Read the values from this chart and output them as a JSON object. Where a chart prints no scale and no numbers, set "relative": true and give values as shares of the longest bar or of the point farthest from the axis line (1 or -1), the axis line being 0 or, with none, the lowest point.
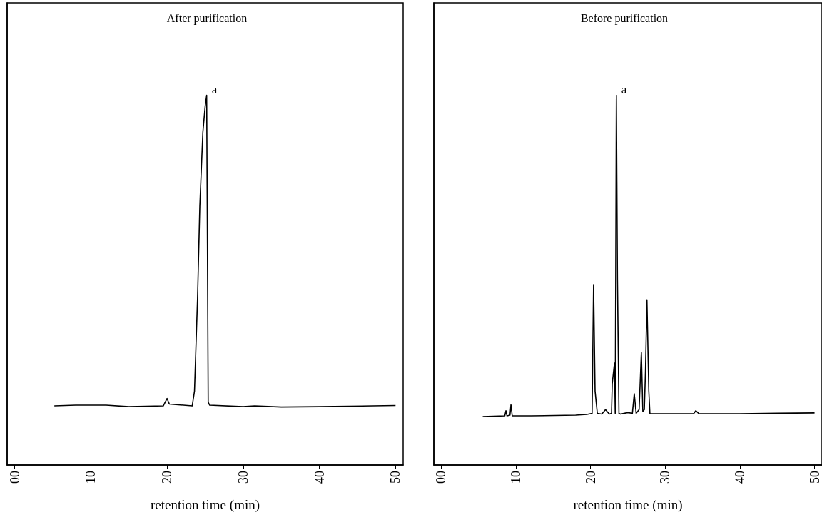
{
  "chart_data": [
    {
      "type": "line",
      "title": "After purification",
      "xlabel": "retention time (min)",
      "relative": true,
      "xlim": [
        -1,
        51
      ],
      "xticks": [
        {
          "value": 0,
          "label": "00"
        },
        10,
        20,
        30,
        40,
        50
      ],
      "tick_labels": "x",
      "grid": false,
      "marker": "none",
      "line_style": "solid",
      "annotations": [
        {
          "text": "a",
          "x": 25.2,
          "y": 1.0
        }
      ],
      "series": [
        {
          "color": "#000000",
          "x": [
            5.2,
            8,
            12,
            15,
            19.5,
            20.0,
            20.3,
            23.3,
            23.6,
            24.0,
            24.3,
            24.7,
            25.0,
            25.2,
            25.3,
            25.4,
            25.6,
            30,
            31.5,
            35,
            40,
            47,
            50
          ],
          "values": [
            0.16,
            0.162,
            0.162,
            0.158,
            0.16,
            0.18,
            0.165,
            0.16,
            0.2,
            0.45,
            0.7,
            0.9,
            0.97,
            1.0,
            0.6,
            0.17,
            0.162,
            0.158,
            0.16,
            0.157,
            0.158,
            0.16,
            0.161
          ]
        }
      ]
    },
    {
      "type": "line",
      "title": "Before purification",
      "xlabel": "retention time (min)",
      "relative": true,
      "xlim": [
        -1,
        51
      ],
      "xticks": [
        {
          "value": 0,
          "label": "00"
        },
        10,
        20,
        30,
        40,
        50
      ],
      "tick_labels": "x",
      "grid": false,
      "marker": "none",
      "line_style": "solid",
      "annotations": [
        {
          "text": "a",
          "x": 23.45,
          "y": 1.0
        }
      ],
      "series": [
        {
          "color": "#000000",
          "x": [
            5.55,
            8.5,
            8.66,
            8.8,
            9.2,
            9.33,
            9.5,
            12,
            18,
            19.5,
            20.2,
            20.4,
            20.6,
            20.9,
            21.5,
            22.0,
            22.5,
            22.8,
            22.9,
            23.2,
            23.3,
            23.45,
            23.6,
            23.8,
            24.0,
            25.0,
            25.6,
            25.85,
            26.1,
            26.5,
            26.8,
            27.0,
            27.2,
            27.35,
            27.55,
            27.8,
            27.95,
            30,
            33.8,
            34.1,
            34.5,
            40,
            45,
            50
          ],
          "values": [
            0.131,
            0.133,
            0.147,
            0.133,
            0.135,
            0.163,
            0.133,
            0.133,
            0.135,
            0.137,
            0.14,
            0.488,
            0.2,
            0.14,
            0.138,
            0.15,
            0.138,
            0.14,
            0.22,
            0.276,
            0.14,
            1.0,
            0.5,
            0.14,
            0.138,
            0.142,
            0.14,
            0.193,
            0.14,
            0.15,
            0.304,
            0.145,
            0.15,
            0.252,
            0.447,
            0.2,
            0.139,
            0.139,
            0.139,
            0.147,
            0.139,
            0.139,
            0.14,
            0.141
          ]
        }
      ]
    }
  ]
}
